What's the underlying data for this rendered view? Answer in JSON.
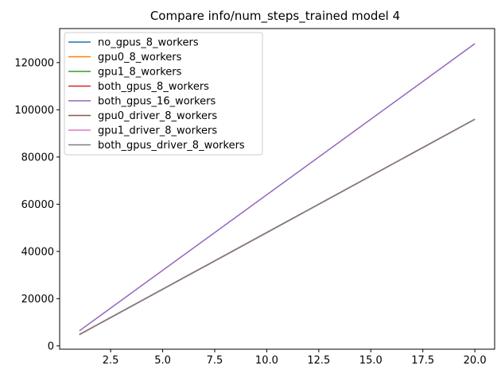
{
  "chart_data": {
    "type": "line",
    "title": "Compare info/num_steps_trained model 4",
    "xlabel": "",
    "ylabel": "",
    "xlim": [
      0.05,
      20.95
    ],
    "ylim": [
      -1400,
      134400
    ],
    "x_ticks": [
      2.5,
      5.0,
      7.5,
      10.0,
      12.5,
      15.0,
      17.5,
      20.0
    ],
    "x_tick_labels": [
      "2.5",
      "5.0",
      "7.5",
      "10.0",
      "12.5",
      "15.0",
      "17.5",
      "20.0"
    ],
    "y_ticks": [
      0,
      20000,
      40000,
      60000,
      80000,
      100000,
      120000
    ],
    "y_tick_labels": [
      "0",
      "20000",
      "40000",
      "60000",
      "80000",
      "100000",
      "120000"
    ],
    "grid": false,
    "legend_position": "top-left",
    "x": [
      1,
      20
    ],
    "series": [
      {
        "name": "no_gpus_8_workers",
        "color": "#1f77b4",
        "values": [
          4800,
          96000
        ]
      },
      {
        "name": "gpu0_8_workers",
        "color": "#ff7f0e",
        "values": [
          4800,
          96000
        ]
      },
      {
        "name": "gpu1_8_workers",
        "color": "#2ca02c",
        "values": [
          4800,
          96000
        ]
      },
      {
        "name": "both_gpus_8_workers",
        "color": "#d62728",
        "values": [
          4800,
          96000
        ]
      },
      {
        "name": "both_gpus_16_workers",
        "color": "#9467bd",
        "values": [
          6400,
          128000
        ]
      },
      {
        "name": "gpu0_driver_8_workers",
        "color": "#8c564b",
        "values": [
          4800,
          96000
        ]
      },
      {
        "name": "gpu1_driver_8_workers",
        "color": "#e377c2",
        "values": [
          4800,
          96000
        ]
      },
      {
        "name": "both_gpus_driver_8_workers",
        "color": "#7f7f7f",
        "values": [
          4800,
          96000
        ]
      }
    ]
  }
}
